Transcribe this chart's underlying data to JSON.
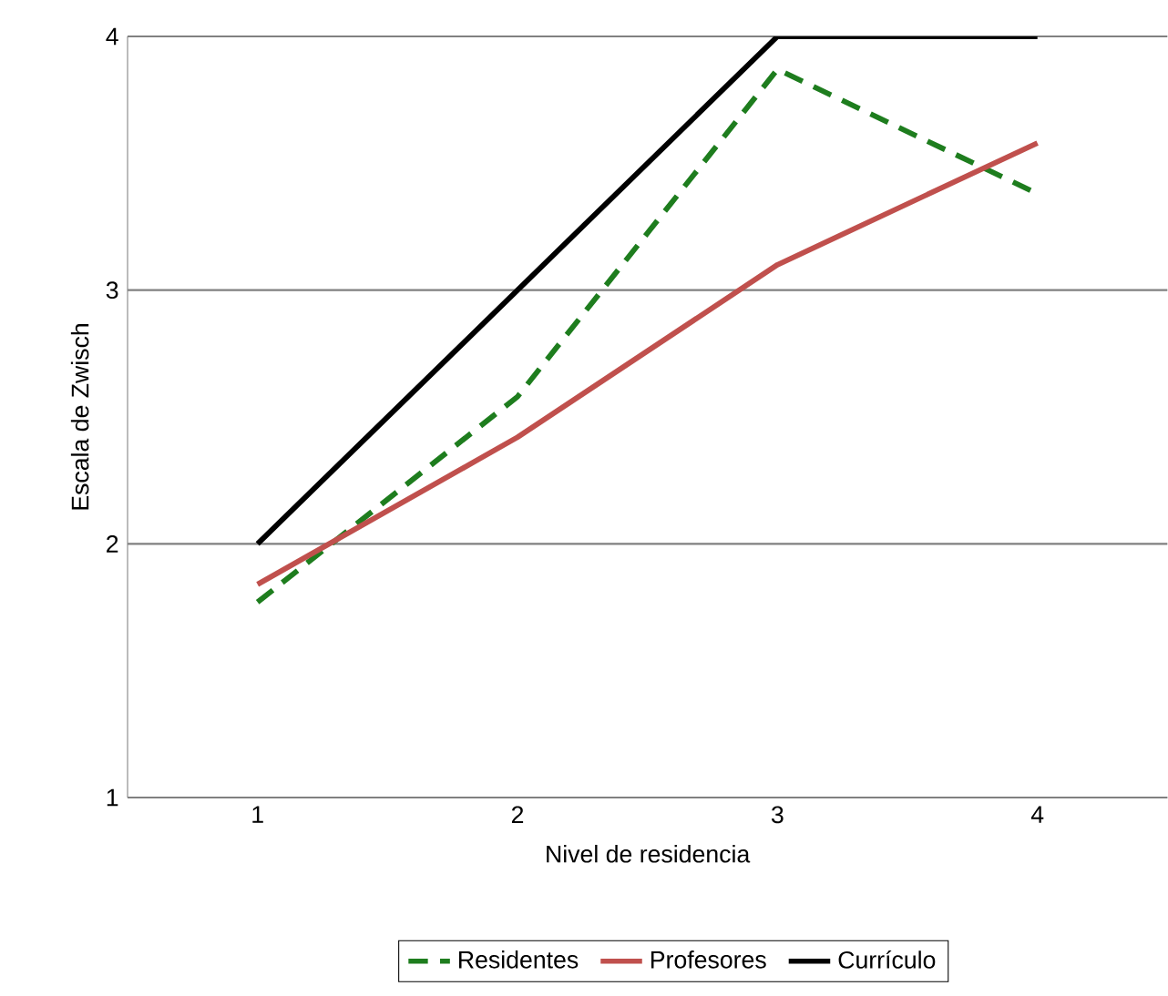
{
  "chart_data": {
    "type": "line",
    "xlabel": "Nivel de residencia",
    "ylabel": "Escala de Zwisch",
    "categories": [
      "1",
      "2",
      "3",
      "4"
    ],
    "series": [
      {
        "name": "Residentes",
        "color": "#1e7d1e",
        "line_style": "dashed",
        "values": [
          1.77,
          2.58,
          3.87,
          3.38
        ]
      },
      {
        "name": "Profesores",
        "color": "#c0504d",
        "line_style": "solid",
        "values": [
          1.84,
          2.42,
          3.1,
          3.58
        ]
      },
      {
        "name": "Currículo",
        "color": "#000000",
        "line_style": "solid",
        "values": [
          2,
          3,
          4,
          4
        ]
      }
    ],
    "ylim": [
      1,
      4
    ],
    "yticks": [
      1,
      2,
      3,
      4
    ],
    "grid": "y",
    "legend": "bottom",
    "marker": "none"
  }
}
